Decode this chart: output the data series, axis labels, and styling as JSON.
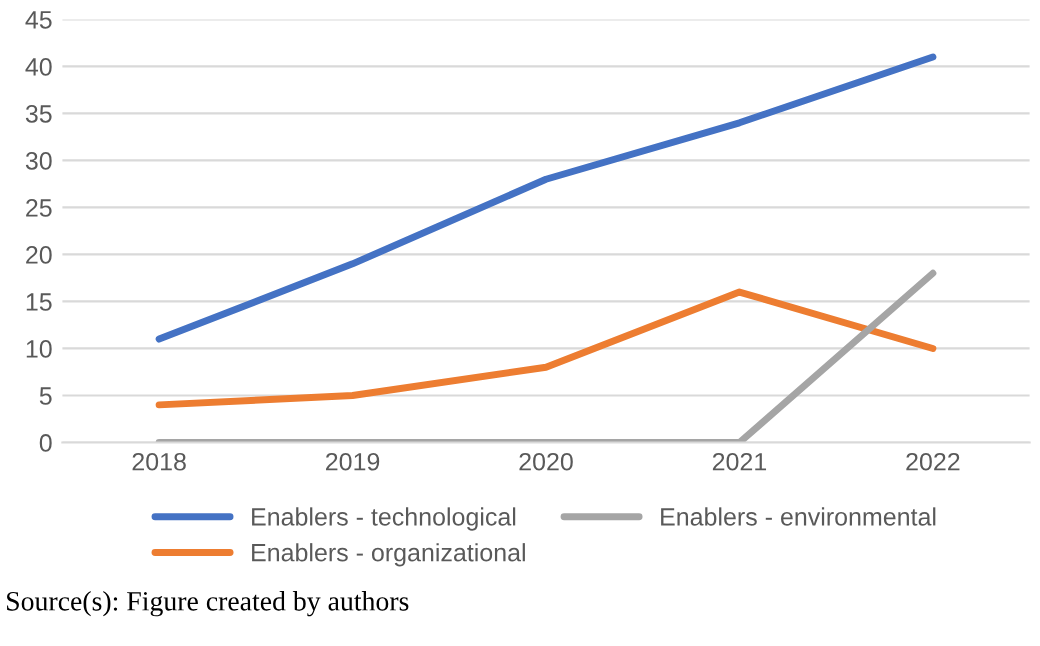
{
  "chart_data": {
    "type": "line",
    "categories": [
      "2018",
      "2019",
      "2020",
      "2021",
      "2022"
    ],
    "series": [
      {
        "name": "Enablers - technological",
        "color": "#4472c4",
        "values": [
          11,
          19,
          28,
          34,
          41
        ]
      },
      {
        "name": "Enablers - organizational",
        "color": "#ed7d31",
        "values": [
          4,
          5,
          8,
          16,
          10
        ]
      },
      {
        "name": "Enablers - environmental",
        "color": "#a5a5a5",
        "values": [
          0,
          0,
          0,
          0,
          18
        ]
      }
    ],
    "ylim": [
      0,
      45
    ],
    "yticks": [
      0,
      5,
      10,
      15,
      20,
      25,
      30,
      35,
      40,
      45
    ],
    "grid": "y",
    "legend": "bottom",
    "annotations": [
      "Source(s): Figure created by authors"
    ]
  }
}
